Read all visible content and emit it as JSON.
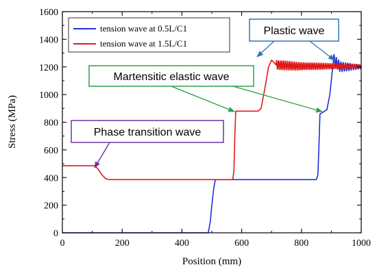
{
  "chart_data": {
    "type": "line",
    "xlabel": "Position (mm)",
    "ylabel": "Stress (MPa)",
    "xlim": [
      0,
      1000
    ],
    "ylim": [
      0,
      1600
    ],
    "x_ticks": [
      "0",
      "200",
      "400",
      "600",
      "800",
      "1000"
    ],
    "y_ticks": [
      "0",
      "200",
      "400",
      "600",
      "800",
      "1000",
      "1200",
      "1400",
      "1600"
    ],
    "grid": false,
    "legend_position": "top-left",
    "series": [
      {
        "name": "tension wave at 0.5L/C1",
        "color": "#1f2fd6",
        "points": [
          [
            0,
            0
          ],
          [
            488,
            0
          ],
          [
            495,
            80
          ],
          [
            500,
            200
          ],
          [
            507,
            330
          ],
          [
            512,
            385
          ],
          [
            520,
            385
          ],
          [
            850,
            385
          ],
          [
            855,
            420
          ],
          [
            858,
            600
          ],
          [
            862,
            860
          ],
          [
            870,
            870
          ],
          [
            885,
            890
          ],
          [
            895,
            1000
          ],
          [
            902,
            1150
          ],
          [
            907,
            1250
          ],
          [
            1000,
            1200
          ]
        ]
      },
      {
        "name": "tension wave at 1.5L/C1",
        "color": "#e01818",
        "points": [
          [
            0,
            485
          ],
          [
            108,
            485
          ],
          [
            118,
            465
          ],
          [
            132,
            420
          ],
          [
            145,
            392
          ],
          [
            155,
            385
          ],
          [
            570,
            385
          ],
          [
            574,
            450
          ],
          [
            577,
            700
          ],
          [
            580,
            880
          ],
          [
            655,
            880
          ],
          [
            665,
            900
          ],
          [
            678,
            1050
          ],
          [
            690,
            1200
          ],
          [
            700,
            1250
          ],
          [
            715,
            1215
          ],
          [
            1000,
            1205
          ]
        ]
      }
    ],
    "annotations": [
      {
        "label": "Plastic wave",
        "border_color": "#2e75b6",
        "arrow_color": "#2e75b6"
      },
      {
        "label": "Martensitic elastic wave",
        "border_color": "#2ea04a",
        "arrow_color": "#2ea04a"
      },
      {
        "label": "Phase transition wave",
        "border_color": "#7030a0",
        "arrow_color": "#7030a0"
      }
    ]
  }
}
